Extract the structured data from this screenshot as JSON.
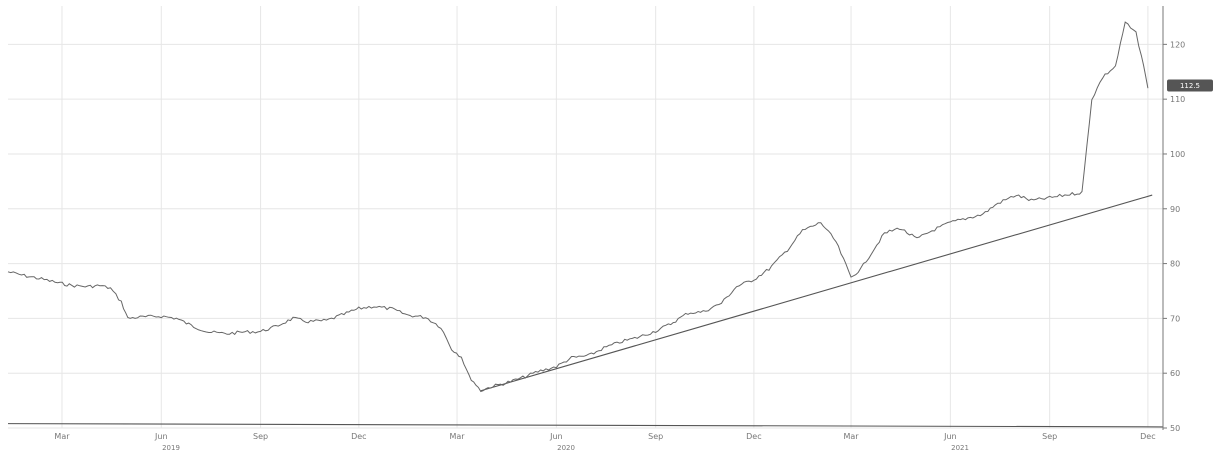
{
  "chart_data": {
    "type": "line",
    "title": "",
    "xlabel": "",
    "ylabel": "",
    "ylim": [
      50,
      127
    ],
    "xlim": [
      "2019-01-10",
      "2021-12-15"
    ],
    "y_ticks": [
      "50",
      "60",
      "70",
      "80",
      "90",
      "100",
      "110",
      "120"
    ],
    "x_ticks": [
      {
        "label": "Mar",
        "x": "2019-03-01"
      },
      {
        "label": "Jun",
        "x": "2019-06-01"
      },
      {
        "label": "Sep",
        "x": "2019-09-01"
      },
      {
        "label": "Dec",
        "x": "2019-12-01"
      },
      {
        "label": "Mar",
        "x": "2020-03-01"
      },
      {
        "label": "Jun",
        "x": "2020-06-01"
      },
      {
        "label": "Sep",
        "x": "2020-09-01"
      },
      {
        "label": "Dec",
        "x": "2020-12-01"
      },
      {
        "label": "Mar",
        "x": "2021-03-01"
      },
      {
        "label": "Jun",
        "x": "2021-06-01"
      },
      {
        "label": "Sep",
        "x": "2021-09-01"
      },
      {
        "label": "Dec",
        "x": "2021-12-01"
      }
    ],
    "year_labels": [
      {
        "label": "2019",
        "x": "2019-06-10"
      },
      {
        "label": "2020",
        "x": "2020-06-10"
      },
      {
        "label": "2021",
        "x": "2021-06-10"
      }
    ],
    "grid": true,
    "series": [
      {
        "x": [
          "2019-01-10",
          "2019-01-25",
          "2019-02-10",
          "2019-02-25",
          "2019-03-10",
          "2019-03-25",
          "2019-04-05",
          "2019-04-15",
          "2019-04-25",
          "2019-05-01",
          "2019-05-10",
          "2019-05-20",
          "2019-06-01",
          "2019-06-15",
          "2019-07-01",
          "2019-07-15",
          "2019-08-01",
          "2019-08-15",
          "2019-09-01",
          "2019-09-15",
          "2019-10-01",
          "2019-10-15",
          "2019-11-01",
          "2019-11-15",
          "2019-12-01",
          "2019-12-15",
          "2020-01-01",
          "2020-01-15",
          "2020-02-01",
          "2020-02-15",
          "2020-02-25",
          "2020-03-05",
          "2020-03-12",
          "2020-03-23",
          "2020-04-01",
          "2020-04-15",
          "2020-05-01",
          "2020-05-15",
          "2020-06-01",
          "2020-06-15",
          "2020-07-01",
          "2020-07-15",
          "2020-08-01",
          "2020-08-15",
          "2020-09-01",
          "2020-09-15",
          "2020-10-01",
          "2020-10-15",
          "2020-11-01",
          "2020-11-15",
          "2020-12-01",
          "2020-12-15",
          "2021-01-01",
          "2021-01-15",
          "2021-02-01",
          "2021-02-15",
          "2021-03-01",
          "2021-03-10",
          "2021-03-20",
          "2021-04-01",
          "2021-04-15",
          "2021-05-01",
          "2021-05-15",
          "2021-06-01",
          "2021-06-15",
          "2021-07-01",
          "2021-07-15",
          "2021-08-01",
          "2021-08-15",
          "2021-09-01",
          "2021-09-15",
          "2021-10-01",
          "2021-10-10",
          "2021-10-20",
          "2021-11-01",
          "2021-11-10",
          "2021-11-20",
          "2021-11-25",
          "2021-12-01"
        ],
        "values": [
          78.5,
          77.8,
          77.2,
          76.5,
          76,
          75.8,
          76,
          75.5,
          73,
          70,
          70.2,
          70.3,
          70.4,
          70,
          68.5,
          67.5,
          67.2,
          67.5,
          67.6,
          68.5,
          70,
          69.4,
          69.6,
          70.6,
          71.8,
          72.2,
          71.7,
          70.6,
          70.2,
          68.4,
          64.4,
          63,
          59.5,
          56.8,
          57.5,
          58.2,
          59.2,
          60.3,
          61.2,
          62.8,
          63.2,
          64.6,
          65.8,
          66.5,
          67.7,
          69,
          71,
          71.2,
          72.8,
          75.8,
          77.1,
          79,
          82.5,
          86,
          87.5,
          84,
          77.5,
          79,
          82,
          85.5,
          86.5,
          84.5,
          86,
          87.5,
          88.2,
          89,
          91,
          92.5,
          91.5,
          92,
          92.5,
          93,
          110,
          114,
          116,
          124,
          122,
          118,
          112
        ]
      }
    ],
    "trendlines": [
      {
        "x": [
          "2019-01-10",
          "2021-12-15"
        ],
        "values": [
          50.8,
          50.2
        ]
      },
      {
        "x": [
          "2020-03-23",
          "2021-12-05"
        ],
        "values": [
          56.8,
          92.5
        ]
      }
    ],
    "last_price": "112.5"
  }
}
